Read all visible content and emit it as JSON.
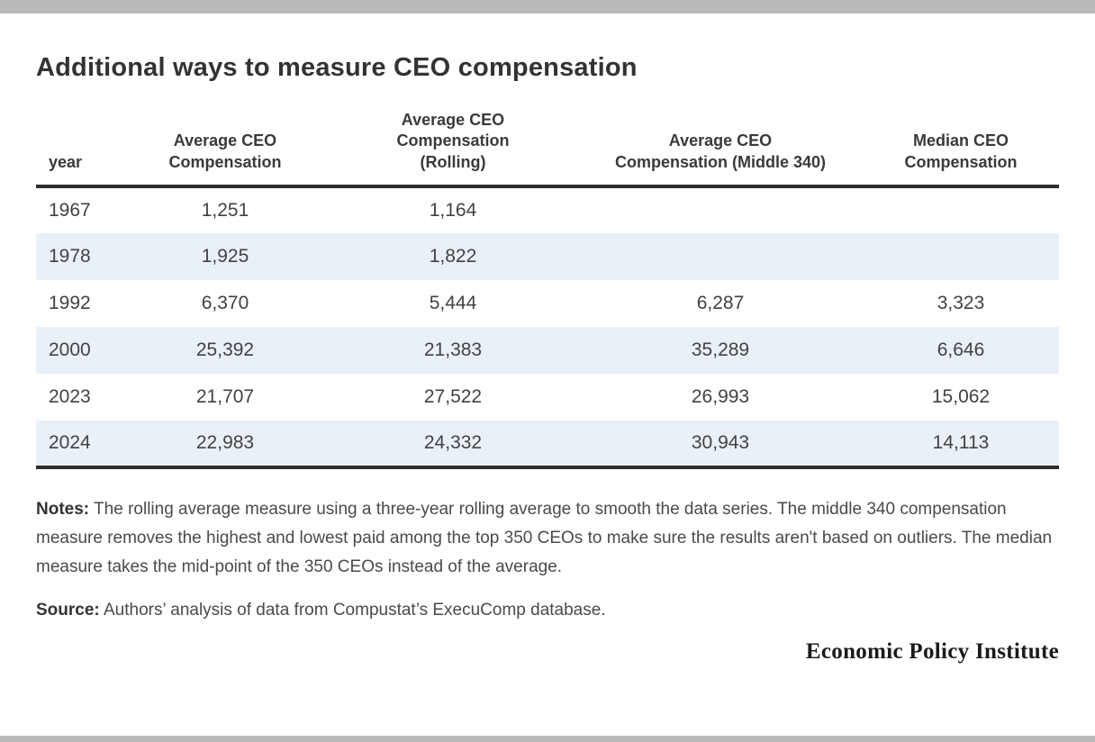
{
  "page": {
    "title": "Additional ways to measure CEO compensation"
  },
  "table": {
    "columns": [
      "year",
      "Average CEO Compensation",
      "Average CEO Compensation (Rolling)",
      "Average CEO Compensation (Middle 340)",
      "Median CEO Compensation"
    ],
    "rows": [
      {
        "cells": [
          "1967",
          "1,251",
          "1,164",
          "",
          ""
        ]
      },
      {
        "cells": [
          "1978",
          "1,925",
          "1,822",
          "",
          ""
        ]
      },
      {
        "cells": [
          "1992",
          "6,370",
          "5,444",
          "6,287",
          "3,323"
        ]
      },
      {
        "cells": [
          "2000",
          "25,392",
          "21,383",
          "35,289",
          "6,646"
        ]
      },
      {
        "cells": [
          "2023",
          "21,707",
          "27,522",
          "26,993",
          "15,062"
        ]
      },
      {
        "cells": [
          "2024",
          "22,983",
          "24,332",
          "30,943",
          "14,113"
        ]
      }
    ]
  },
  "notes": {
    "label": "Notes:",
    "text": " The rolling average measure using a three-year rolling average to smooth the data series. The middle 340 compensation measure removes the highest and lowest paid among the top 350 CEOs to make sure the results aren't based on outliers. The median measure takes the mid-point of the 350 CEOs instead of the average."
  },
  "source": {
    "label": "Source:",
    "text": " Authors’ analysis of data from Compustat’s ExecuComp database."
  },
  "footer": {
    "logo": "Economic Policy Institute"
  },
  "colors": {
    "stripe_blue": "#e9f0f8",
    "bar_gray": "#b9b9b9",
    "border_dark": "#2d2d2d",
    "title_text": "#333333",
    "body_text": "#424242"
  },
  "chart_data": {
    "type": "table",
    "title": "Additional ways to measure CEO compensation",
    "columns": [
      "year",
      "Average CEO Compensation",
      "Average CEO Compensation (Rolling)",
      "Average CEO Compensation (Middle 340)",
      "Median CEO Compensation"
    ],
    "rows": [
      [
        "1967",
        1251,
        1164,
        null,
        null
      ],
      [
        "1978",
        1925,
        1822,
        null,
        null
      ],
      [
        "1992",
        6370,
        5444,
        6287,
        3323
      ],
      [
        "2000",
        25392,
        21383,
        35289,
        6646
      ],
      [
        "2023",
        21707,
        27522,
        26993,
        15062
      ],
      [
        "2024",
        22983,
        24332,
        30943,
        14113
      ]
    ],
    "notes": "The rolling average measure using a three-year rolling average to smooth the data series. The middle 340 compensation measure removes the highest and lowest paid among the top 350 CEOs to make sure the results aren't based on outliers. The median measure takes the mid-point of the 350 CEOs instead of the average.",
    "source": "Authors’ analysis of data from Compustat’s ExecuComp database."
  }
}
